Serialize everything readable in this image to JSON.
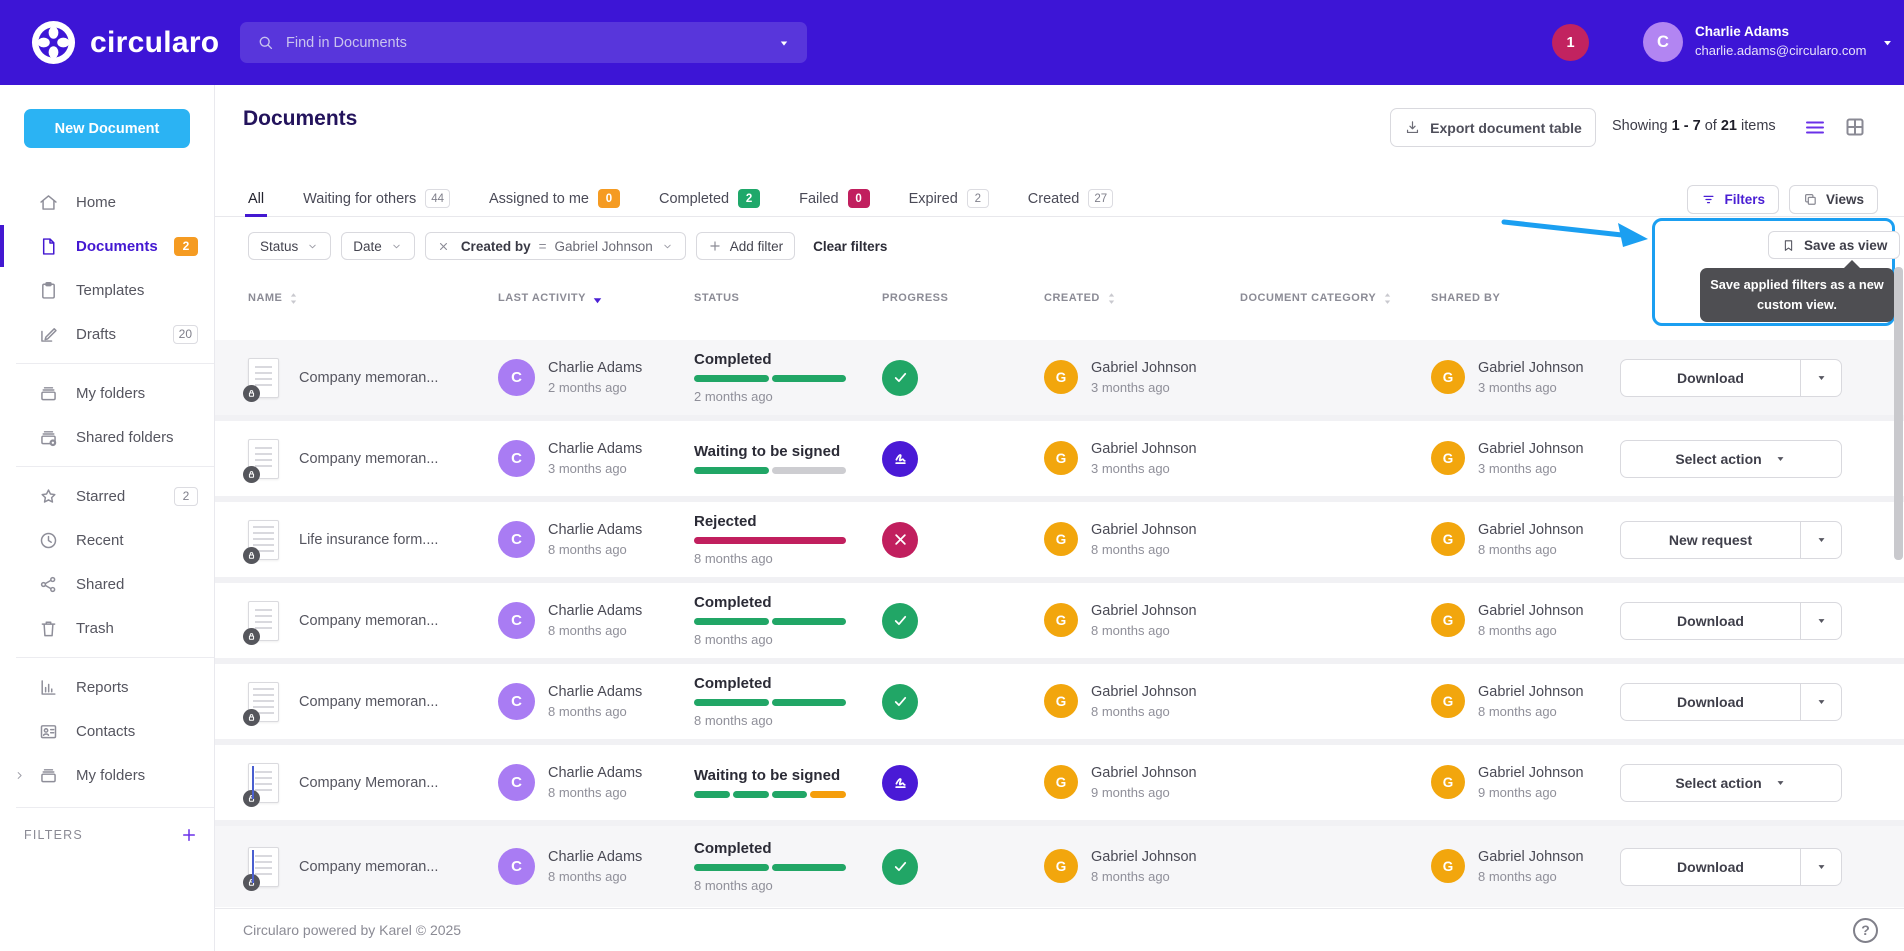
{
  "header": {
    "brand": "circularo",
    "search": {
      "placeholder": "Find in Documents"
    },
    "notification_count": "1",
    "user": {
      "initial": "C",
      "name": "Charlie Adams",
      "email": "charlie.adams@circularo.com"
    }
  },
  "sidebar": {
    "new_document_label": "New Document",
    "filters_label": "FILTERS",
    "sections": [
      {
        "items": [
          {
            "label": "Home",
            "icon": "home"
          },
          {
            "label": "Documents",
            "icon": "doc",
            "active": true,
            "badge": "2",
            "badge_style": "orange"
          },
          {
            "label": "Templates",
            "icon": "clipboard"
          },
          {
            "label": "Drafts",
            "icon": "pencil",
            "badge": "20",
            "badge_style": "plain"
          }
        ]
      },
      {
        "items": [
          {
            "label": "My folders",
            "icon": "drawer"
          },
          {
            "label": "Shared folders",
            "icon": "drawer-shared"
          }
        ]
      },
      {
        "items": [
          {
            "label": "Starred",
            "icon": "star",
            "badge": "2",
            "badge_style": "plain"
          },
          {
            "label": "Recent",
            "icon": "clock"
          },
          {
            "label": "Shared",
            "icon": "share"
          },
          {
            "label": "Trash",
            "icon": "trash"
          }
        ]
      },
      {
        "items": [
          {
            "label": "Reports",
            "icon": "chart"
          },
          {
            "label": "Contacts",
            "icon": "contacts"
          },
          {
            "label": "My folders",
            "icon": "drawer",
            "expandable": true
          }
        ]
      }
    ]
  },
  "main": {
    "title": "Documents",
    "export_label": "Export document table",
    "showing": {
      "prefix": "Showing",
      "range": "1 - 7",
      "middle": "of",
      "total": "21",
      "suffix": "items"
    },
    "tabs": [
      {
        "label": "All",
        "active": true
      },
      {
        "label": "Waiting for others",
        "badge": "44",
        "badge_style": "plain"
      },
      {
        "label": "Assigned to me",
        "badge": "0",
        "badge_style": "orange"
      },
      {
        "label": "Completed",
        "badge": "2",
        "badge_style": "green"
      },
      {
        "label": "Failed",
        "badge": "0",
        "badge_style": "crimson"
      },
      {
        "label": "Expired",
        "badge": "2",
        "badge_style": "plain"
      },
      {
        "label": "Created",
        "badge": "27",
        "badge_style": "plain"
      }
    ],
    "filters": {
      "chips": [
        {
          "type": "dropdown",
          "label": "Status"
        },
        {
          "type": "dropdown",
          "label": "Date"
        },
        {
          "type": "applied",
          "label": "Created by",
          "operator": "=",
          "value": "Gabriel Johnson"
        },
        {
          "type": "add",
          "label": "Add filter"
        }
      ],
      "clear_label": "Clear filters",
      "filters_button": "Filters",
      "views_button": "Views"
    },
    "save_view": {
      "button_label": "Save as view",
      "tooltip": "Save applied filters as a new custom view."
    },
    "table": {
      "columns": [
        {
          "label": "NAME",
          "sort": "both"
        },
        {
          "label": "LAST ACTIVITY",
          "sort": "desc"
        },
        {
          "label": "STATUS",
          "sort": "none"
        },
        {
          "label": "PROGRESS",
          "sort": "none"
        },
        {
          "label": "CREATED",
          "sort": "both"
        },
        {
          "label": "DOCUMENT CATEGORY",
          "sort": "both"
        },
        {
          "label": "SHARED BY",
          "sort": "none"
        }
      ],
      "rows": [
        {
          "name": "Company memoran...",
          "doc_icon": "memo",
          "shaded": true,
          "last_activity": {
            "initial": "C",
            "name": "Charlie Adams",
            "time": "2 months ago"
          },
          "status": {
            "label": "Completed",
            "icon": "check",
            "time": "2 months ago",
            "segments": [
              "green",
              "green"
            ]
          },
          "created": {
            "initial": "G",
            "name": "Gabriel Johnson",
            "time": "3 months ago"
          },
          "document_category": "",
          "shared_by": {
            "initial": "G",
            "name": "Gabriel Johnson",
            "time": "3 months ago"
          },
          "action": {
            "label": "Download",
            "split": true
          }
        },
        {
          "name": "Company memoran...",
          "doc_icon": "memo",
          "shaded": false,
          "last_activity": {
            "initial": "C",
            "name": "Charlie Adams",
            "time": "3 months ago"
          },
          "status": {
            "label": "Waiting to be signed",
            "icon": "sign",
            "time": "",
            "segments": [
              "green",
              "grey"
            ]
          },
          "created": {
            "initial": "G",
            "name": "Gabriel Johnson",
            "time": "3 months ago"
          },
          "document_category": "",
          "shared_by": {
            "initial": "G",
            "name": "Gabriel Johnson",
            "time": "3 months ago"
          },
          "action": {
            "label": "Select action",
            "split": false
          }
        },
        {
          "name": "Life insurance form....",
          "doc_icon": "form",
          "shaded": false,
          "last_activity": {
            "initial": "C",
            "name": "Charlie Adams",
            "time": "8 months ago"
          },
          "status": {
            "label": "Rejected",
            "icon": "cross",
            "time": "8 months ago",
            "segments": [
              "crimson"
            ]
          },
          "created": {
            "initial": "G",
            "name": "Gabriel Johnson",
            "time": "8 months ago"
          },
          "document_category": "",
          "shared_by": {
            "initial": "G",
            "name": "Gabriel Johnson",
            "time": "8 months ago"
          },
          "action": {
            "label": "New request",
            "split": true
          }
        },
        {
          "name": "Company memoran...",
          "doc_icon": "memo",
          "shaded": false,
          "last_activity": {
            "initial": "C",
            "name": "Charlie Adams",
            "time": "8 months ago"
          },
          "status": {
            "label": "Completed",
            "icon": "check",
            "time": "8 months ago",
            "segments": [
              "green",
              "green"
            ]
          },
          "created": {
            "initial": "G",
            "name": "Gabriel Johnson",
            "time": "8 months ago"
          },
          "document_category": "",
          "shared_by": {
            "initial": "G",
            "name": "Gabriel Johnson",
            "time": "8 months ago"
          },
          "action": {
            "label": "Download",
            "split": true
          }
        },
        {
          "name": "Company memoran...",
          "doc_icon": "form",
          "shaded": false,
          "last_activity": {
            "initial": "C",
            "name": "Charlie Adams",
            "time": "8 months ago"
          },
          "status": {
            "label": "Completed",
            "icon": "check",
            "time": "8 months ago",
            "segments": [
              "green",
              "green"
            ]
          },
          "created": {
            "initial": "G",
            "name": "Gabriel Johnson",
            "time": "8 months ago"
          },
          "document_category": "",
          "shared_by": {
            "initial": "G",
            "name": "Gabriel Johnson",
            "time": "8 months ago"
          },
          "action": {
            "label": "Download",
            "split": true
          }
        },
        {
          "name": "Company Memoran...",
          "doc_icon": "blue",
          "shaded": false,
          "last_activity": {
            "initial": "C",
            "name": "Charlie Adams",
            "time": "8 months ago"
          },
          "status": {
            "label": "Waiting to be signed",
            "icon": "sign",
            "time": "",
            "segments": [
              "green",
              "green",
              "green",
              "orange"
            ]
          },
          "created": {
            "initial": "G",
            "name": "Gabriel Johnson",
            "time": "9 months ago"
          },
          "document_category": "",
          "shared_by": {
            "initial": "G",
            "name": "Gabriel Johnson",
            "time": "9 months ago"
          },
          "action": {
            "label": "Select action",
            "split": false
          }
        },
        {
          "name": "Company memoran...",
          "doc_icon": "blue",
          "shaded": true,
          "last_activity": {
            "initial": "C",
            "name": "Charlie Adams",
            "time": "8 months ago"
          },
          "status": {
            "label": "Completed",
            "icon": "check",
            "time": "8 months ago",
            "segments": [
              "green",
              "green"
            ]
          },
          "created": {
            "initial": "G",
            "name": "Gabriel Johnson",
            "time": "8 months ago"
          },
          "document_category": "",
          "shared_by": {
            "initial": "G",
            "name": "Gabriel Johnson",
            "time": "8 months ago"
          },
          "action": {
            "label": "Download",
            "split": true
          }
        }
      ]
    },
    "footer": "Circularo powered by Karel © 2025"
  },
  "colors": {
    "header_purple": "#3d15d6",
    "accent_purple": "#4318d1",
    "new_document_blue": "#2bb3f3",
    "annotation_blue": "#1b9ff1",
    "green": "#21a666",
    "orange": "#f59b22",
    "crimson": "#c11f5e",
    "avatar_purple": "#a97cf3",
    "avatar_amber": "#f2a60d"
  }
}
